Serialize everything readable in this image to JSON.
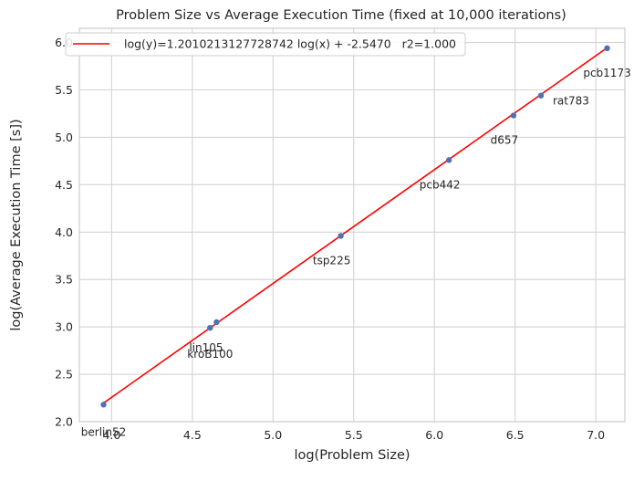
{
  "chart_data": {
    "type": "scatter",
    "title": "Problem Size vs Average Execution Time (fixed at 10,000 iterations)",
    "xlabel": "log(Problem Size)",
    "ylabel": "log(Average Execution Time [s])",
    "xlim": [
      3.8,
      7.18
    ],
    "ylim": [
      2.0,
      6.15
    ],
    "xticks": [
      4.0,
      4.5,
      5.0,
      5.5,
      6.0,
      6.5,
      7.0
    ],
    "xtick_labels": [
      "4.0",
      "4.5",
      "5.0",
      "5.5",
      "6.0",
      "6.5",
      "7.0"
    ],
    "yticks": [
      2.0,
      2.5,
      3.0,
      3.5,
      4.0,
      4.5,
      5.0,
      5.5,
      6.0
    ],
    "ytick_labels": [
      "2.0",
      "2.5",
      "3.0",
      "3.5",
      "4.0",
      "4.5",
      "5.0",
      "5.5",
      "6.0"
    ],
    "grid": true,
    "legend_position": "top-left",
    "points": [
      {
        "label": "berlin52",
        "x": 3.95,
        "y": 2.18
      },
      {
        "label": "kroB100",
        "x": 4.61,
        "y": 2.99
      },
      {
        "label": "lin105",
        "x": 4.65,
        "y": 3.05
      },
      {
        "label": "tsp225",
        "x": 5.42,
        "y": 3.96
      },
      {
        "label": "pcb442",
        "x": 6.09,
        "y": 4.76
      },
      {
        "label": "d657",
        "x": 6.49,
        "y": 5.23
      },
      {
        "label": "rat783",
        "x": 6.66,
        "y": 5.44
      },
      {
        "label": "pcb1173",
        "x": 7.07,
        "y": 5.94
      }
    ],
    "fit_line": {
      "name": "log(y)=1.2010213127728742 log(x) + -2.5470   r2=1.000",
      "slope": 1.2010213127728742,
      "intercept": -2.547,
      "x_range": [
        3.95,
        7.07
      ]
    },
    "colors": {
      "points": "#4c72b0",
      "fit_line": "#ff0000",
      "grid": "#d3d3d3",
      "spine": "#cccccc"
    }
  }
}
